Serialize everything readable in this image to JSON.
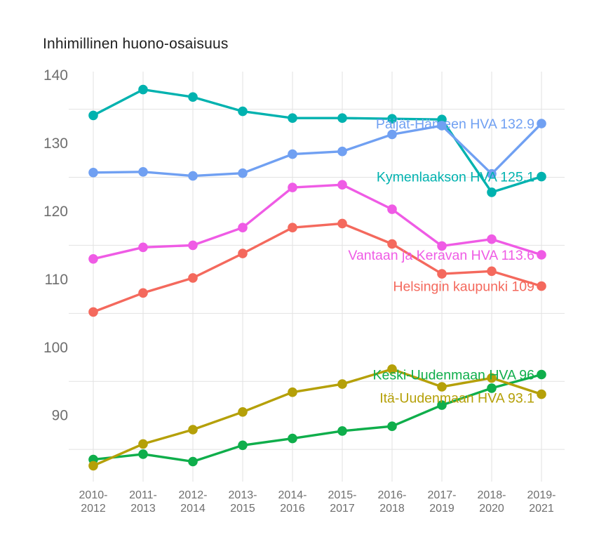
{
  "chart_data": {
    "type": "line",
    "title": "Inhimillinen huono-osaisuus",
    "x_categories": [
      "2010-2012",
      "2011-2013",
      "2012-2014",
      "2013-2015",
      "2014-2016",
      "2015-2017",
      "2016-2018",
      "2017-2019",
      "2018-2020",
      "2019-2021"
    ],
    "y_tick_labels": [
      140,
      130,
      120,
      110,
      100,
      90
    ],
    "gridline_values": [
      135,
      125,
      115,
      105,
      95,
      85
    ],
    "ylim": [
      82,
      140.5
    ],
    "grid": "on",
    "legend_position": "inline-right-of-plot",
    "axis_text_color": "#6e6e6e",
    "gridline_color": "#e2e2e2",
    "title_color": "#1f1f1f",
    "series": [
      {
        "name": "Kymenlaakson HVA",
        "label": "Kymenlaakson HVA 125.1",
        "final_value": 125.1,
        "color": "#00b2af",
        "values": [
          134.1,
          137.9,
          136.8,
          134.7,
          133.7,
          133.7,
          133.6,
          133.5,
          122.8,
          125.1
        ]
      },
      {
        "name": "Päijät-Hämeen HVA",
        "label": "Päijät-Hämeen HVA 132.9",
        "final_value": 132.9,
        "color": "#70a0f2",
        "values": [
          125.7,
          125.8,
          125.2,
          125.6,
          128.4,
          128.8,
          131.3,
          132.6,
          125.5,
          132.9
        ]
      },
      {
        "name": "Vantaan ja Keravan HVA",
        "label": "Vantaan ja Keravan HVA 113.6",
        "final_value": 113.6,
        "color": "#ef5be5",
        "values": [
          113.0,
          114.7,
          115.0,
          117.6,
          123.5,
          123.9,
          120.3,
          114.9,
          115.9,
          113.6
        ]
      },
      {
        "name": "Helsingin kaupunki",
        "label": "Helsingin kaupunki 109",
        "final_value": 109,
        "color": "#f4695d",
        "values": [
          105.2,
          108.0,
          110.2,
          113.8,
          117.6,
          118.2,
          115.2,
          110.8,
          111.2,
          109.0
        ]
      },
      {
        "name": "Keski-Uudenmaan HVA",
        "label": "Keski-Uudenmaan HVA 96",
        "final_value": 96,
        "color": "#0fae4b",
        "values": [
          83.5,
          84.3,
          83.2,
          85.6,
          86.6,
          87.7,
          88.4,
          91.5,
          94.0,
          96.0
        ]
      },
      {
        "name": "Itä-Uudenmaan HVA",
        "label": "Itä-Uudenmaan HVA 93.1",
        "final_value": 93.1,
        "color": "#b5a008",
        "values": [
          82.6,
          85.8,
          87.9,
          90.5,
          93.4,
          94.6,
          96.8,
          94.2,
          95.5,
          93.1
        ]
      }
    ]
  }
}
